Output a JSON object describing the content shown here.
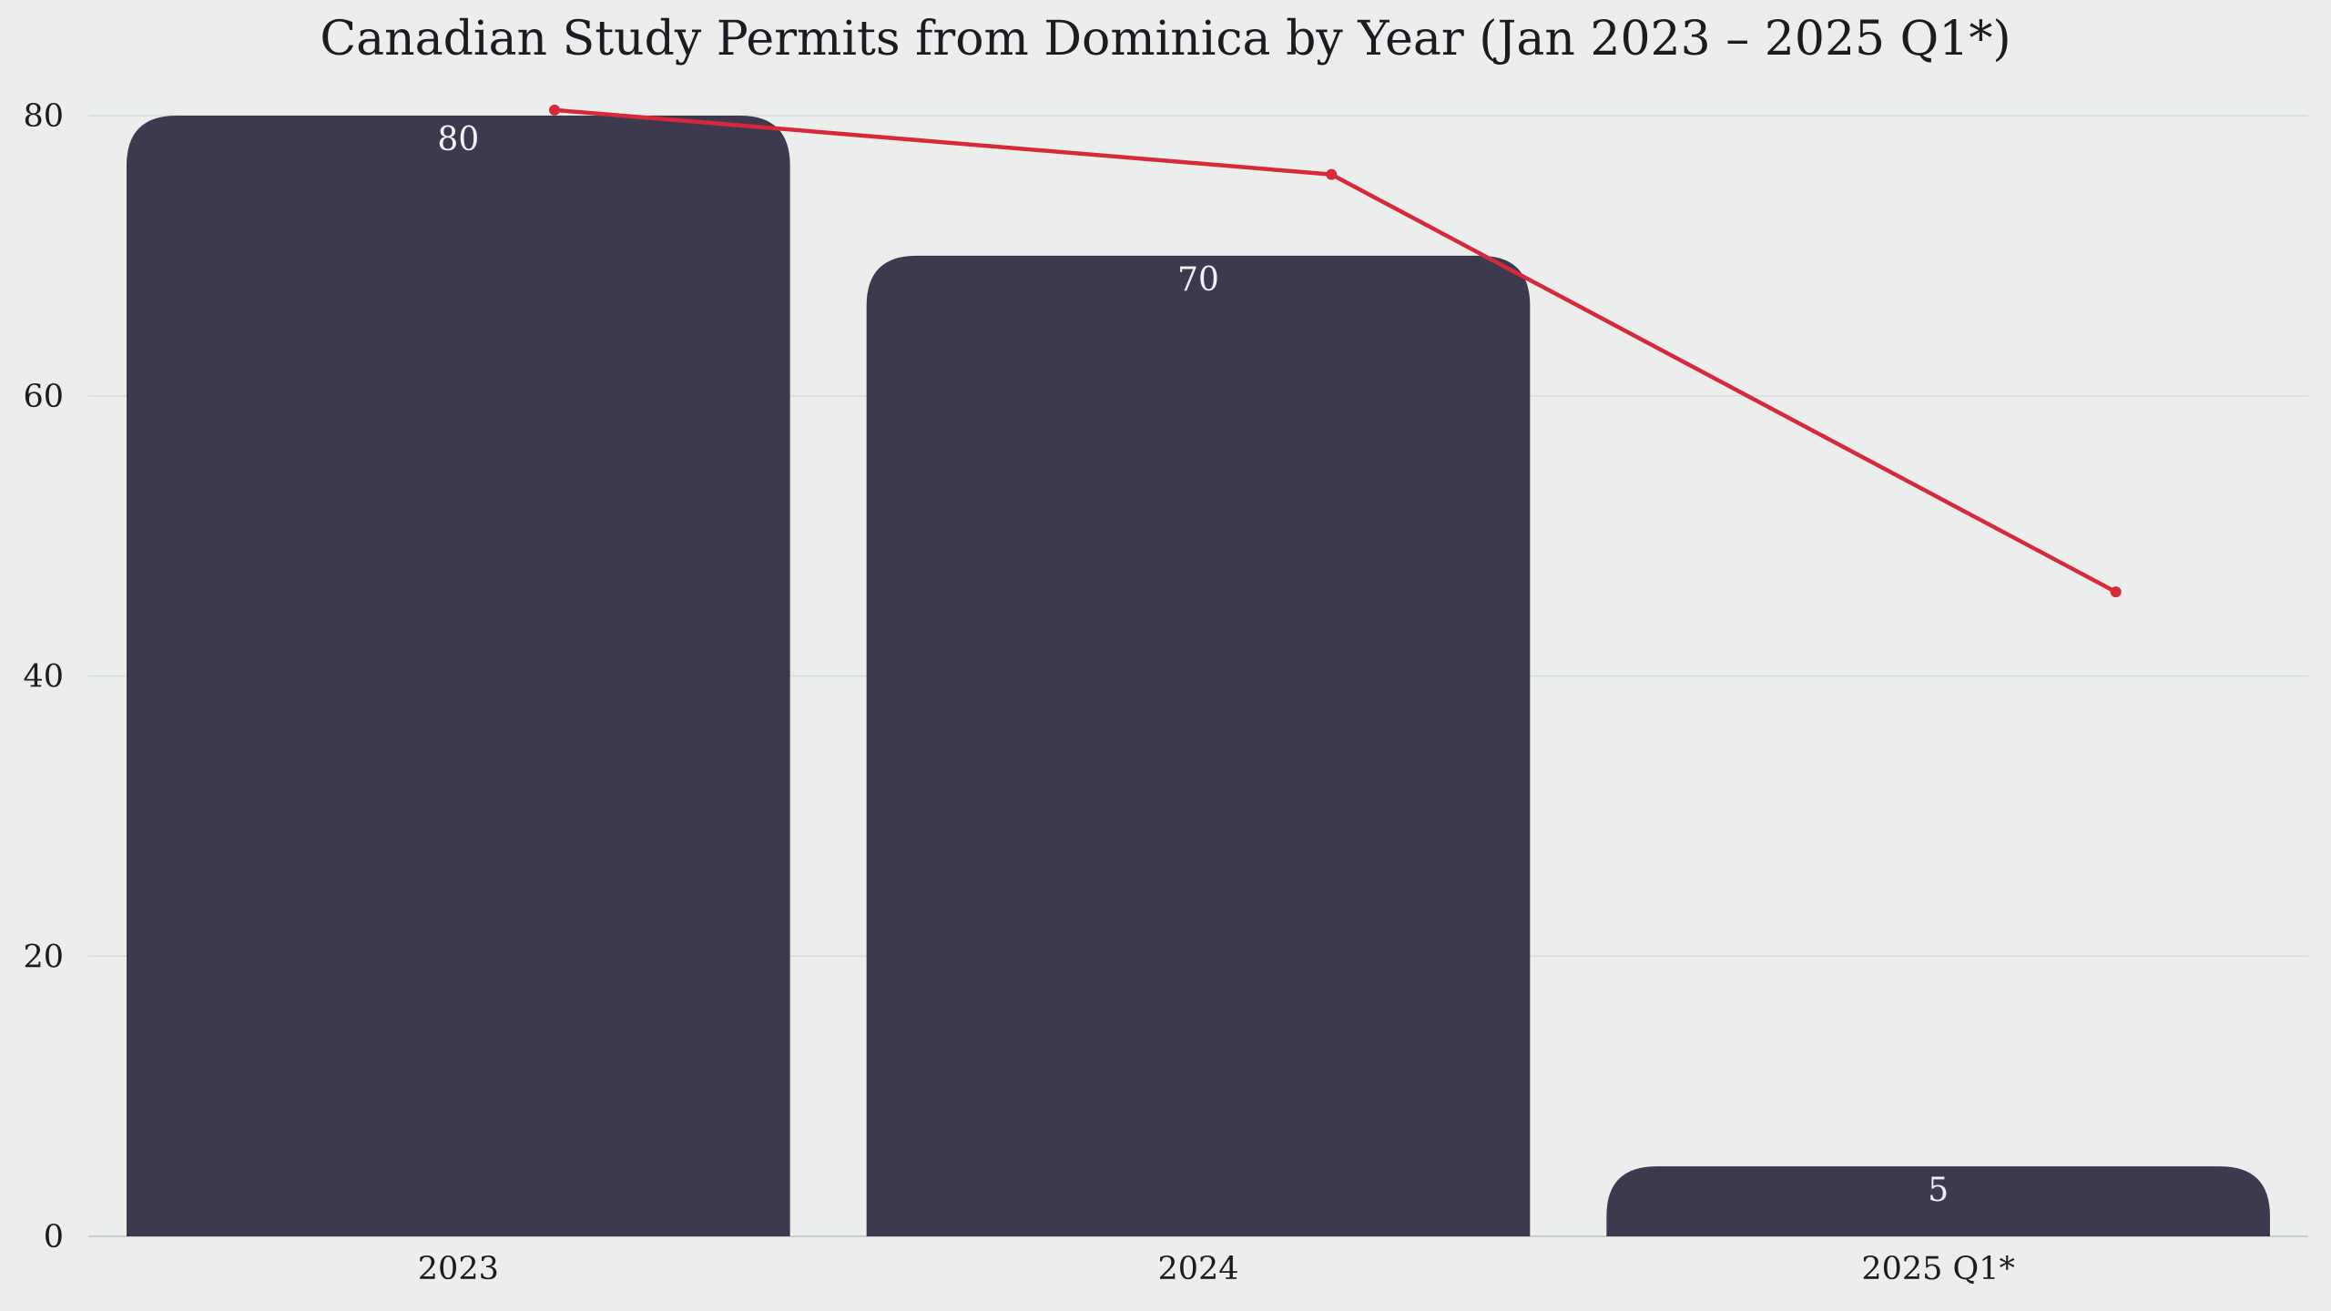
{
  "chart_data": {
    "type": "bar",
    "title": "Canadian Study Permits from Dominica by Year (Jan 2023 – 2025 Q1*)",
    "xlabel": "",
    "ylabel": "",
    "categories": [
      "2023",
      "2024",
      "2025 Q1*"
    ],
    "values": [
      80,
      70,
      5
    ],
    "data_labels": [
      "80",
      "70",
      "5"
    ],
    "ylim": [
      0,
      80
    ],
    "yticks": [
      0,
      20,
      40,
      60,
      80
    ],
    "ytick_labels": [
      "0",
      "20",
      "40",
      "60",
      "80"
    ],
    "grid": true,
    "legend": "none",
    "trend_line": {
      "type": "line",
      "x_positions": [
        0.13,
        1.18,
        2.24
      ],
      "values": [
        80.4,
        75.8,
        46
      ]
    },
    "colors": {
      "bar": "#3d3a50",
      "trend_line": "#d6293a",
      "background": "#ebeeec",
      "label": "#f2f1f5",
      "text": "#1d1a22",
      "grid": "#d7dbd9"
    }
  }
}
